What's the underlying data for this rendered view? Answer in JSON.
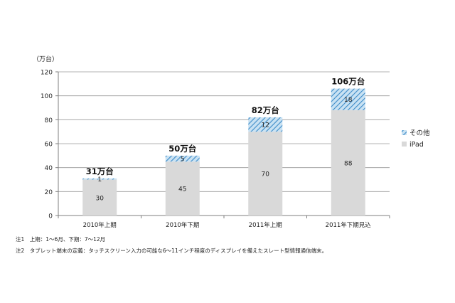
{
  "chart_data": {
    "type": "bar",
    "stacked": true,
    "unit_label": "（万台）",
    "categories": [
      "2010年上期",
      "2010年下期",
      "2011年上期",
      "2011年下期見込"
    ],
    "series": [
      {
        "name": "iPad",
        "values": [
          30,
          45,
          70,
          88
        ],
        "color": "#d9d9d9",
        "pattern": "solid"
      },
      {
        "name": "その他",
        "values": [
          1,
          5,
          12,
          18
        ],
        "color": "#4f9ad0",
        "pattern": "diagonal-hatch"
      }
    ],
    "totals": [
      "31万台",
      "50万台",
      "82万台",
      "106万台"
    ],
    "ylim": [
      0,
      120
    ],
    "yticks": [
      0,
      20,
      40,
      60,
      80,
      100,
      120
    ],
    "grid": true,
    "legend_position": "right",
    "legend_order": [
      "その他",
      "iPad"
    ]
  },
  "notes": [
    "注1　上期：1～6月、下期：7～12月",
    "注2　タブレット端末の定義：タッチスクリーン入力の可能な6～11インチ程度のディスプレイを備えたスレート型情報通信端末。"
  ]
}
